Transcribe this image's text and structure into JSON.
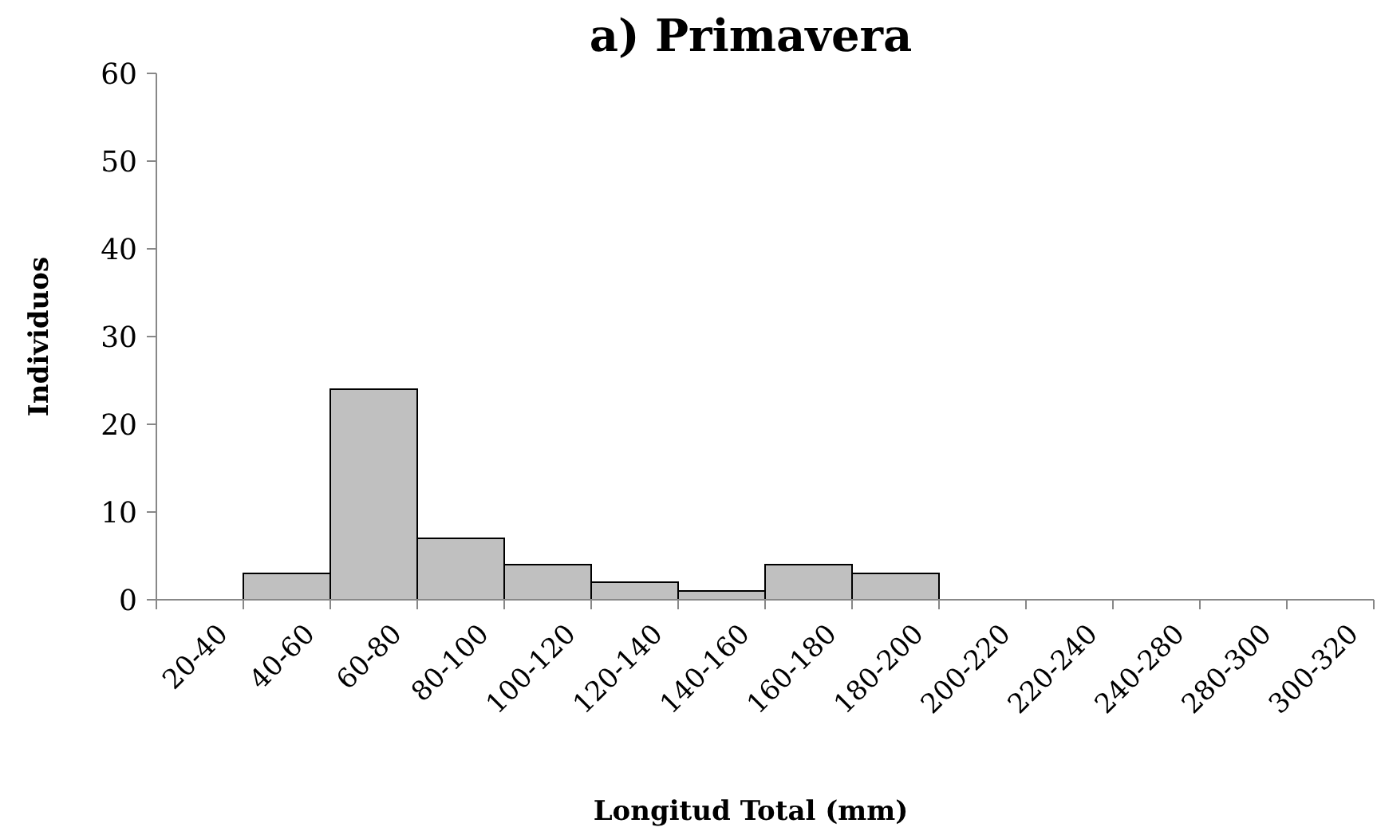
{
  "chart_data": {
    "type": "bar",
    "title": "a) Primavera",
    "xlabel": "Longitud Total (mm)",
    "ylabel": "Individuos",
    "categories": [
      "20-40",
      "40-60",
      "60-80",
      "80-100",
      "100-120",
      "120-140",
      "140-160",
      "160-180",
      "180-200",
      "200-220",
      "220-240",
      "240-280",
      "280-300",
      "300-320"
    ],
    "values": [
      0,
      3,
      24,
      7,
      4,
      2,
      1,
      4,
      3,
      0,
      0,
      0,
      0,
      0
    ],
    "color": "#c0c0c0",
    "ylim": [
      0,
      60
    ],
    "yticks": [
      0,
      10,
      20,
      30,
      40,
      50,
      60
    ],
    "grid": false
  }
}
